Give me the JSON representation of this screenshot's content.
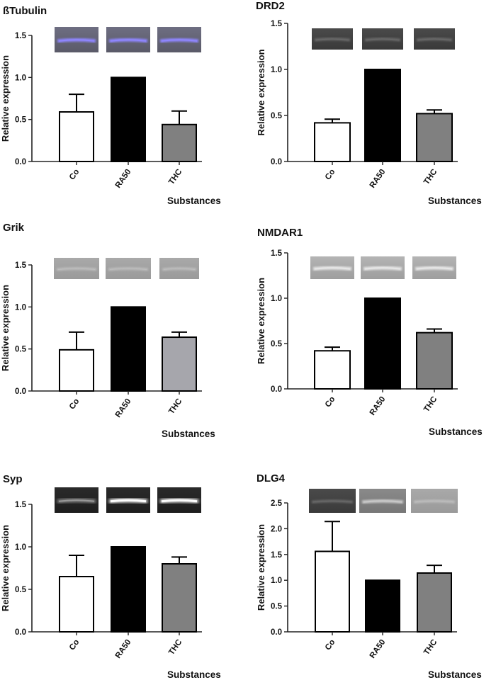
{
  "chart_data": [
    {
      "type": "bar",
      "title": "ßTubulin",
      "categories": [
        "Co",
        "RA50",
        "THC"
      ],
      "values": [
        0.59,
        1.0,
        0.44
      ],
      "errors": [
        0.21,
        0,
        0.16
      ],
      "bar_colors": [
        "#ffffff",
        "#000000",
        "#808080"
      ],
      "xlabel": "Substances",
      "ylabel": "Relative expression",
      "ylim": [
        0,
        1.5
      ],
      "yticks": [
        "0.0",
        "0.5",
        "1.0",
        "1.5"
      ],
      "blot_style": [
        "purple",
        "purple",
        "purple"
      ]
    },
    {
      "type": "bar",
      "title": "DRD2",
      "categories": [
        "Co",
        "RA50",
        "THC"
      ],
      "values": [
        0.42,
        1.0,
        0.52
      ],
      "errors": [
        0.04,
        0,
        0.04
      ],
      "bar_colors": [
        "#ffffff",
        "#000000",
        "#808080"
      ],
      "xlabel": "Substances",
      "ylabel": "Relative expression",
      "ylim": [
        0,
        1.5
      ],
      "yticks": [
        "0.0",
        "0.5",
        "1.0",
        "1.5"
      ],
      "blot_style": [
        "dark",
        "dark",
        "dark"
      ]
    },
    {
      "type": "bar",
      "title": "Grik",
      "categories": [
        "Co",
        "RA50",
        "THC"
      ],
      "values": [
        0.49,
        1.0,
        0.64
      ],
      "errors": [
        0.21,
        0,
        0.06
      ],
      "bar_colors": [
        "#ffffff",
        "#000000",
        "#a6a6ac"
      ],
      "xlabel": "Substances",
      "ylabel": "Relative expression",
      "ylim": [
        0,
        1.5
      ],
      "yticks": [
        "0.0",
        "0.5",
        "1.0",
        "1.5"
      ],
      "blot_style": [
        "light",
        "light",
        "light"
      ]
    },
    {
      "type": "bar",
      "title": "NMDAR1",
      "categories": [
        "Co",
        "RA50",
        "THC"
      ],
      "values": [
        0.42,
        1.0,
        0.62
      ],
      "errors": [
        0.04,
        0,
        0.04
      ],
      "bar_colors": [
        "#ffffff",
        "#000000",
        "#808080"
      ],
      "xlabel": "Substances",
      "ylabel": "Relative expression",
      "ylim": [
        0,
        1.5
      ],
      "yticks": [
        "0.0",
        "0.5",
        "1.0",
        "1.5"
      ],
      "blot_style": [
        "light-band",
        "light-band",
        "light-band"
      ]
    },
    {
      "type": "bar",
      "title": "Syp",
      "categories": [
        "Co",
        "RA50",
        "THC"
      ],
      "values": [
        0.65,
        1.0,
        0.8
      ],
      "errors": [
        0.25,
        0,
        0.08
      ],
      "bar_colors": [
        "#ffffff",
        "#000000",
        "#808080"
      ],
      "xlabel": "Substances",
      "ylabel": "Relative expression",
      "ylim": [
        0,
        1.5
      ],
      "yticks": [
        "0.0",
        "0.5",
        "1.0",
        "1.5"
      ],
      "blot_style": [
        "dark-glow-faint",
        "dark-glow",
        "dark-glow"
      ]
    },
    {
      "type": "bar",
      "title": "DLG4",
      "categories": [
        "Co",
        "RA50",
        "THC"
      ],
      "values": [
        1.56,
        1.0,
        1.14
      ],
      "errors": [
        0.58,
        0,
        0.15
      ],
      "bar_colors": [
        "#ffffff",
        "#000000",
        "#808080"
      ],
      "xlabel": "Substances",
      "ylabel": "Relative expression",
      "ylim": [
        0,
        2.5
      ],
      "yticks": [
        "0.0",
        "0.5",
        "1.0",
        "1.5",
        "2.0",
        "2.5"
      ],
      "blot_style": [
        "dark",
        "mid",
        "light"
      ]
    }
  ]
}
